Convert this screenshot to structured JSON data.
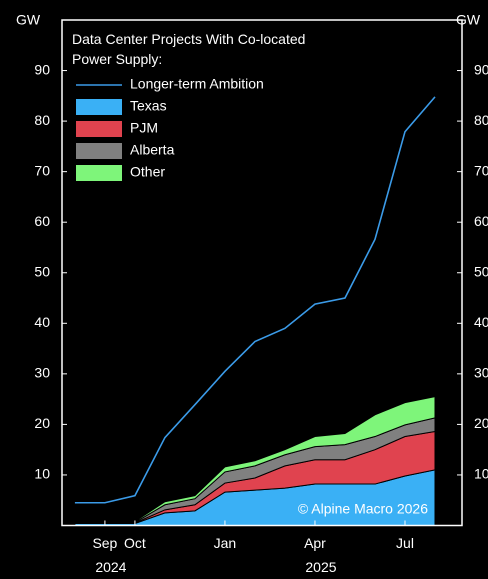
{
  "chart_data": {
    "type": "stacked_area_line",
    "title": "Data Center Projects With Co-located Power Supply:",
    "y_label": "GW",
    "y2_label": "GW",
    "x": [
      -2,
      -1,
      0,
      1,
      2,
      3,
      4,
      5,
      6,
      7,
      8,
      9,
      10
    ],
    "xlim": [
      -2.43,
      10.9
    ],
    "xticks": [
      {
        "value": -1,
        "label": "Sep"
      },
      {
        "value": 0,
        "label": "Oct"
      },
      {
        "value": 3,
        "label": "Jan"
      },
      {
        "value": 6,
        "label": "Apr"
      },
      {
        "value": 9,
        "label": "Jul"
      }
    ],
    "x_group_labels": [
      {
        "value": -0.8,
        "label": "2024"
      },
      {
        "value": 6.2,
        "label": "2025"
      }
    ],
    "ylim": [
      0,
      100
    ],
    "yticks": [
      10,
      20,
      30,
      40,
      50,
      60,
      70,
      80,
      90
    ],
    "series": [
      {
        "name": "Longer-term Ambition",
        "color": "#3b9be8",
        "kind": "line",
        "values": [
          4.5,
          4.5,
          5.9,
          17.4,
          23.9,
          30.5,
          36.4,
          39.0,
          43.8,
          45.0,
          56.6,
          77.9,
          84.8
        ]
      },
      {
        "name": "Texas",
        "color": "#3ab0f5",
        "kind": "area",
        "values": [
          0.4,
          0.4,
          0.4,
          2.5,
          2.9,
          6.6,
          7.0,
          7.4,
          8.2,
          8.2,
          8.2,
          9.8,
          11.0
        ]
      },
      {
        "name": "PJM",
        "color": "#e0434f",
        "kind": "area",
        "values": [
          0.1,
          0.1,
          0.1,
          0.6,
          1.2,
          1.8,
          2.4,
          4.4,
          4.8,
          4.8,
          6.8,
          7.8,
          7.6
        ]
      },
      {
        "name": "Alberta",
        "color": "#808080",
        "kind": "area",
        "values": [
          0.1,
          0.1,
          0.1,
          1.0,
          1.2,
          2.2,
          2.4,
          2.2,
          2.6,
          3.0,
          2.6,
          2.3,
          2.7
        ]
      },
      {
        "name": "Other",
        "color": "#7ef57a",
        "kind": "area",
        "values": [
          0.2,
          0.2,
          0.2,
          0.6,
          0.6,
          1.0,
          1.0,
          1.0,
          2.0,
          2.2,
          4.3,
          4.4,
          4.2
        ]
      }
    ],
    "annotation": "© Alpine Macro 2026"
  }
}
